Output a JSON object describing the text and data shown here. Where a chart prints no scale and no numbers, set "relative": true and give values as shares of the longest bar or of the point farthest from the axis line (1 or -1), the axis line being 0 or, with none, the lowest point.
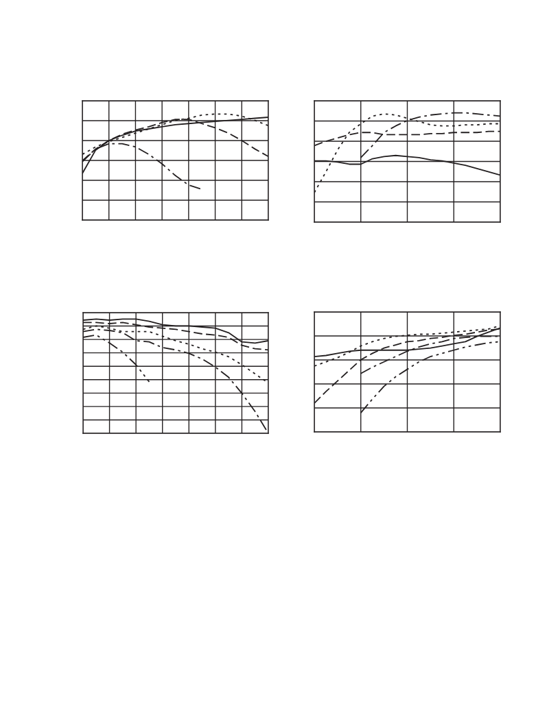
{
  "chart_data": [
    {
      "type": "line",
      "relative": true,
      "grid": true,
      "tick_labels": false,
      "categories": [
        null,
        null,
        null,
        null,
        null,
        null,
        null,
        null,
        null,
        null,
        null,
        null,
        null,
        null,
        null
      ],
      "series": [
        {
          "color": "#231f20",
          "line_style": "solid",
          "values": [
            0.44,
            0.66,
            0.75,
            0.8,
            0.84,
            0.86,
            0.88,
            0.9,
            0.91,
            0.92,
            0.93,
            0.94,
            0.95,
            0.96,
            0.97
          ]
        },
        {
          "color": "#231f20",
          "line_style": "dotted",
          "values": [
            0.62,
            0.69,
            0.74,
            0.78,
            0.82,
            0.86,
            0.9,
            0.94,
            0.96,
            0.99,
            1,
            1,
            0.98,
            0.94,
            0.89
          ]
        },
        {
          "color": "#231f20",
          "line_style": "dashed",
          "values": [
            0.56,
            0.67,
            0.75,
            0.81,
            0.85,
            0.88,
            0.92,
            0.95,
            0.95,
            0.91,
            0.87,
            0.82,
            0.75,
            0.67,
            0.6
          ]
        },
        {
          "color": "#231f20",
          "line_style": "dashdot",
          "values": [
            0.55,
            0.67,
            0.72,
            0.72,
            0.69,
            0.62,
            0.53,
            0.42,
            0.33,
            0.29,
            null,
            null,
            null,
            null,
            null
          ]
        }
      ]
    },
    {
      "type": "line",
      "relative": true,
      "grid": true,
      "tick_labels": false,
      "categories": [
        null,
        null,
        null,
        null,
        null,
        null,
        null,
        null,
        null,
        null,
        null,
        null,
        null,
        null,
        null,
        null,
        null
      ],
      "series": [
        {
          "color": "#231f20",
          "line_style": "solid",
          "values": [
            0.56,
            0.56,
            0.55,
            0.53,
            0.53,
            0.58,
            0.6,
            0.61,
            0.6,
            0.59,
            0.57,
            0.56,
            0.54,
            0.52,
            0.49,
            0.46,
            0.43
          ]
        },
        {
          "color": "#231f20",
          "line_style": "dashed",
          "values": [
            0.7,
            0.74,
            0.77,
            0.8,
            0.82,
            0.82,
            0.8,
            0.8,
            0.8,
            0.8,
            0.81,
            0.81,
            0.82,
            0.82,
            0.82,
            0.83,
            0.83
          ]
        },
        {
          "color": "#231f20",
          "line_style": "dotted",
          "values": [
            0.27,
            0.46,
            0.66,
            0.82,
            0.9,
            0.97,
            0.99,
            0.98,
            0.95,
            0.92,
            0.89,
            0.88,
            0.88,
            0.89,
            0.89,
            0.9,
            0.9
          ]
        },
        {
          "color": "#231f20",
          "line_style": "dashdot",
          "values": [
            null,
            null,
            null,
            null,
            0.59,
            0.7,
            0.82,
            0.88,
            0.93,
            0.96,
            0.98,
            0.99,
            1,
            1.0,
            0.99,
            0.98,
            0.97
          ]
        }
      ]
    },
    {
      "type": "line",
      "relative": true,
      "grid": true,
      "tick_labels": false,
      "categories": [
        null,
        null,
        null,
        null,
        null,
        null,
        null,
        null,
        null,
        null,
        null,
        null,
        null,
        null,
        null
      ],
      "series": [
        {
          "color": "#231f20",
          "line_style": "solid",
          "values": [
            0.99,
            1,
            0.99,
            1.0,
            1.0,
            0.98,
            0.95,
            0.94,
            0.94,
            0.93,
            0.92,
            0.88,
            0.8,
            0.79,
            0.81
          ]
        },
        {
          "color": "#231f20",
          "line_style": "dashed",
          "values": [
            0.97,
            0.97,
            0.96,
            0.97,
            0.95,
            0.93,
            0.92,
            0.91,
            0.89,
            0.87,
            0.86,
            0.84,
            0.77,
            0.74,
            0.73
          ]
        },
        {
          "color": "#231f20",
          "line_style": "dotted",
          "values": [
            0.91,
            0.94,
            0.92,
            0.89,
            0.89,
            0.89,
            0.85,
            0.81,
            0.78,
            0.74,
            0.71,
            0.67,
            0.6,
            0.52,
            0.44
          ]
        },
        {
          "color": "#231f20",
          "line_style": "dashdot",
          "values": [
            0.89,
            0.91,
            0.9,
            0.88,
            0.81,
            0.8,
            0.75,
            0.73,
            0.7,
            0.65,
            0.58,
            0.49,
            0.35,
            0.19,
            0
          ]
        },
        {
          "color": "#231f20",
          "line_style": "dashdotdot",
          "values": [
            0.84,
            0.86,
            0.79,
            0.71,
            0.6,
            0.45,
            null,
            null,
            null,
            null,
            null,
            null,
            null,
            null,
            null
          ]
        }
      ]
    },
    {
      "type": "line",
      "relative": true,
      "grid": true,
      "tick_labels": false,
      "categories": [
        null,
        null,
        null,
        null,
        null,
        null,
        null,
        null,
        null,
        null,
        null,
        null,
        null,
        null,
        null,
        null,
        null
      ],
      "series": [
        {
          "color": "#231f20",
          "line_style": "solid",
          "values": [
            0.71,
            0.72,
            0.74,
            0.76,
            0.77,
            0.77,
            0.77,
            0.77,
            0.77,
            0.78,
            0.79,
            0.81,
            0.83,
            0.85,
            0.9,
            0.94,
            0.98
          ]
        },
        {
          "color": "#231f20",
          "line_style": "dotted",
          "values": [
            0.62,
            0.66,
            0.7,
            0.75,
            0.81,
            0.85,
            0.88,
            0.9,
            0.91,
            0.92,
            0.92,
            0.93,
            0.94,
            0.95,
            0.96,
            0.97,
            1
          ]
        },
        {
          "color": "#231f20",
          "line_style": "dashed",
          "values": [
            0.27,
            0.38,
            0.48,
            0.58,
            0.68,
            0.74,
            0.79,
            0.82,
            0.85,
            0.86,
            0.88,
            0.89,
            0.91,
            0.92,
            0.94,
            0.96,
            0.97
          ]
        },
        {
          "color": "#231f20",
          "line_style": "dashdot",
          "values": [
            null,
            null,
            null,
            null,
            0.55,
            0.61,
            0.66,
            0.71,
            0.76,
            0.8,
            0.83,
            0.85,
            0.88,
            0.89,
            0.9,
            0.9,
            0.9
          ]
        },
        {
          "color": "#231f20",
          "line_style": "dashdotdot",
          "values": [
            null,
            null,
            null,
            null,
            0.18,
            0.31,
            0.43,
            0.52,
            0.59,
            0.66,
            0.71,
            0.74,
            0.77,
            0.8,
            0.82,
            0.84,
            0.85
          ]
        }
      ]
    }
  ]
}
